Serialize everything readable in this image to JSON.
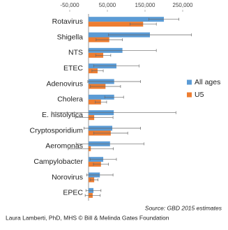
{
  "chart_data": {
    "type": "bar",
    "orientation": "horizontal",
    "categories": [
      "Rotavirus",
      "Shigella",
      "NTS",
      "ETEC",
      "Adenovirus",
      "Cholera",
      "E. histolytica",
      "Cryptosporidium",
      "Aeromonas",
      "Campylobacter",
      "Norovirus",
      "EPEC"
    ],
    "series": [
      {
        "name": "All ages",
        "color": "#5b9bd5",
        "values": [
          200000,
          163000,
          90000,
          74000,
          68000,
          68000,
          67000,
          63000,
          57000,
          39000,
          30000,
          13000
        ],
        "errors": [
          40000,
          110000,
          90000,
          60000,
          70000,
          25000,
          165000,
          75000,
          90000,
          35000,
          35000,
          20000
        ]
      },
      {
        "name": "U5",
        "color": "#ed7d31",
        "values": [
          145000,
          55000,
          39000,
          24000,
          45000,
          33000,
          15000,
          59000,
          6000,
          33000,
          15000,
          11000
        ],
        "errors": [
          35000,
          35000,
          20000,
          15000,
          40000,
          15000,
          50000,
          45000,
          60000,
          20000,
          10000,
          20000
        ]
      }
    ],
    "xlim": [
      -50000,
      260000
    ],
    "xticks": [
      {
        "value": -50000,
        "label": "-50,000"
      },
      {
        "value": 50000,
        "label": "50,000"
      },
      {
        "value": 150000,
        "label": "150,000"
      },
      {
        "value": 250000,
        "label": "250,000"
      }
    ],
    "legend": "right",
    "source": "Source: GBD 2015 estimates",
    "credit": "Laura Lamberti, PhD, MHS © Bill & Melinda Gates Foundation"
  }
}
